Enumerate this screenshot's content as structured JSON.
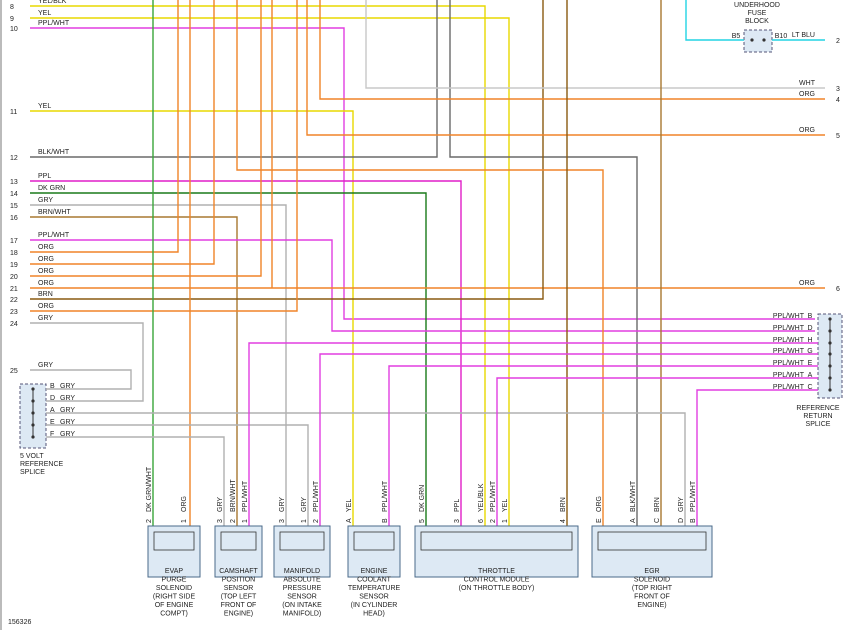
{
  "left_wires": [
    {
      "number": "8",
      "label": "YEL/BLK"
    },
    {
      "number": "9",
      "label": "YEL"
    },
    {
      "number": "10",
      "label": "PPL/WHT"
    },
    {
      "number": "11",
      "label": "YEL"
    },
    {
      "number": "12",
      "label": "BLK/WHT"
    },
    {
      "number": "13",
      "label": "PPL"
    },
    {
      "number": "14",
      "label": "DK GRN"
    },
    {
      "number": "15",
      "label": "GRY"
    },
    {
      "number": "16",
      "label": "BRN/WHT"
    },
    {
      "number": "17",
      "label": "PPL/WHT"
    },
    {
      "number": "18",
      "label": "ORG"
    },
    {
      "number": "19",
      "label": "ORG"
    },
    {
      "number": "20",
      "label": "ORG"
    },
    {
      "number": "21",
      "label": "ORG"
    },
    {
      "number": "22",
      "label": "BRN"
    },
    {
      "number": "23",
      "label": "ORG"
    },
    {
      "number": "24",
      "label": "GRY"
    },
    {
      "number": "25",
      "label": "GRY"
    }
  ],
  "right_wires": [
    {
      "number": "2",
      "label": "LT BLU"
    },
    {
      "number": "3",
      "label": "WHT"
    },
    {
      "number": "4",
      "label": "ORG"
    },
    {
      "number": "5",
      "label": "ORG"
    },
    {
      "number": "6",
      "label": "ORG"
    }
  ],
  "fuse_block": {
    "label": [
      "UNDERHOOD",
      "FUSE",
      "BLOCK"
    ],
    "pins": [
      "B5",
      "B10"
    ]
  },
  "splice_5v": {
    "label": [
      "5 VOLT",
      "REFERENCE",
      "SPLICE"
    ],
    "pins": [
      {
        "pin": "B",
        "wire": "GRY"
      },
      {
        "pin": "D",
        "wire": "GRY"
      },
      {
        "pin": "A",
        "wire": "GRY"
      },
      {
        "pin": "E",
        "wire": "GRY"
      },
      {
        "pin": "F",
        "wire": "GRY"
      }
    ]
  },
  "splice_return": {
    "label": [
      "REFERENCE",
      "RETURN",
      "SPLICE"
    ],
    "pins": [
      {
        "pin": "B",
        "wire": "PPL/WHT"
      },
      {
        "pin": "D",
        "wire": "PPL/WHT"
      },
      {
        "pin": "H",
        "wire": "PPL/WHT"
      },
      {
        "pin": "G",
        "wire": "PPL/WHT"
      },
      {
        "pin": "E",
        "wire": "PPL/WHT"
      },
      {
        "pin": "A",
        "wire": "PPL/WHT"
      },
      {
        "pin": "C",
        "wire": "PPL/WHT"
      }
    ]
  },
  "components": [
    {
      "name": [
        "EVAP",
        "PURGE",
        "SOLENOID",
        "(RIGHT SIDE",
        "OF ENGINE",
        "COMPT)"
      ],
      "pins": [
        {
          "pin": "2",
          "wire": "DK GRN/WHT"
        },
        {
          "pin": "1",
          "wire": "ORG"
        }
      ]
    },
    {
      "name": [
        "CAMSHAFT",
        "POSITION",
        "SENSOR",
        "(TOP LEFT",
        "FRONT OF",
        "ENGINE)"
      ],
      "pins": [
        {
          "pin": "3",
          "wire": "GRY"
        },
        {
          "pin": "2",
          "wire": "BRN/WHT"
        },
        {
          "pin": "1",
          "wire": "PPL/WHT"
        }
      ]
    },
    {
      "name": [
        "MANIFOLD",
        "ABSOLUTE",
        "PRESSURE",
        "SENSOR",
        "(ON INTAKE",
        "MANIFOLD)"
      ],
      "pins": [
        {
          "pin": "3",
          "wire": "GRY"
        },
        {
          "pin": "1",
          "wire": "GRY"
        },
        {
          "pin": "2",
          "wire": "PPL/WHT"
        }
      ]
    },
    {
      "name": [
        "ENGINE",
        "COOLANT",
        "TEMPERATURE",
        "SENSOR",
        "(IN CYLINDER",
        "HEAD)"
      ],
      "pins": [
        {
          "pin": "A",
          "wire": "YEL"
        },
        {
          "pin": "B",
          "wire": "PPL/WHT"
        }
      ]
    },
    {
      "name": [
        "THROTTLE",
        "CONTROL MODULE",
        "(ON THROTTLE BODY)"
      ],
      "pins": [
        {
          "pin": "5",
          "wire": "DK GRN"
        },
        {
          "pin": "3",
          "wire": "PPL"
        },
        {
          "pin": "6",
          "wire": "YEL/BLK"
        },
        {
          "pin": "2",
          "wire": "PPL/WHT"
        },
        {
          "pin": "1",
          "wire": "YEL"
        },
        {
          "pin": "4",
          "wire": "BRN"
        }
      ]
    },
    {
      "name": [
        "EGR",
        "SOLENOID",
        "(TOP RIGHT",
        "FRONT OF",
        "ENGINE)"
      ],
      "pins": [
        {
          "pin": "E",
          "wire": "ORG"
        },
        {
          "pin": "A",
          "wire": "BLK/WHT"
        },
        {
          "pin": "C",
          "wire": "BRN"
        },
        {
          "pin": "D",
          "wire": "GRY"
        },
        {
          "pin": "B",
          "wire": "PPL/WHT"
        }
      ]
    }
  ],
  "footer": "156326"
}
